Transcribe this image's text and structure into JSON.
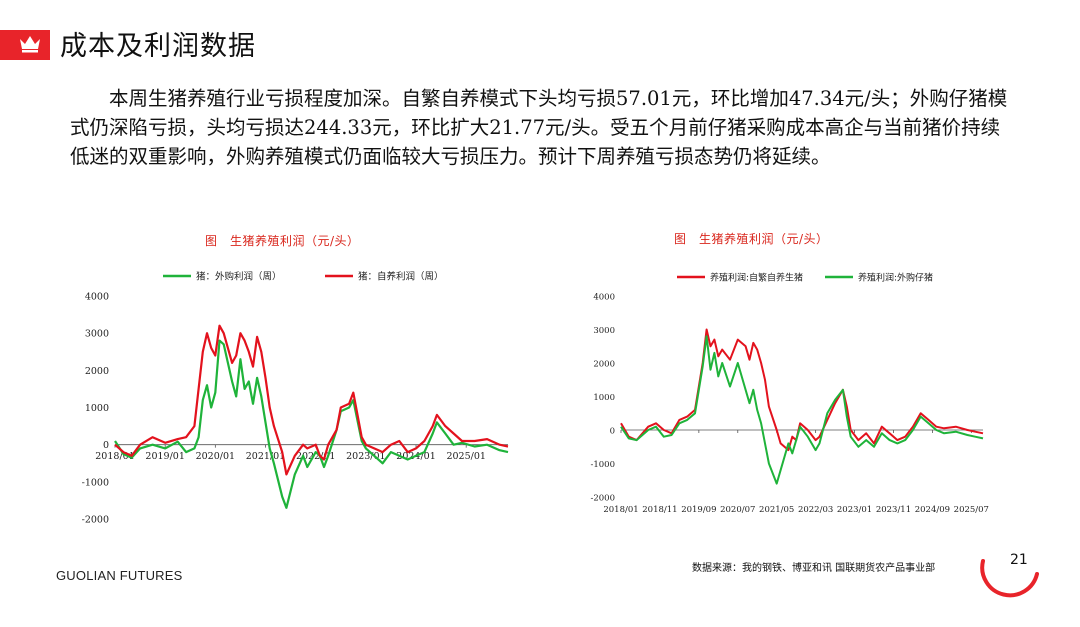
{
  "header": {
    "title": "成本及利润数据",
    "accent_color": "#e8242a",
    "logo_icon": "crown-icon"
  },
  "body": {
    "paragraph": "本周生猪养殖行业亏损程度加深。自繁自养模式下头均亏损57.01元，环比增加47.34元/头；外购仔猪模式仍深陷亏损，头均亏损达244.33元，环比扩大21.77元/头。受五个月前仔猪采购成本高企与当前猪价持续低迷的双重影响，外购养殖模式仍面临较大亏损压力。预计下周养殖亏损态势仍将延续。"
  },
  "footer": {
    "source": "数据来源：我的钢铁、博亚和讯 国联期货农产品事业部",
    "brand": "GUOLIAN FUTURES",
    "page_number": "21"
  },
  "chart_data": [
    {
      "type": "line",
      "title": "图　生猪养殖利润（元/头）",
      "ylim": [
        -2000,
        4000
      ],
      "yticks": [
        "4000",
        "3000",
        "2000",
        "1000",
        "0",
        "-1000",
        "-2000"
      ],
      "xticks": [
        "2018/01",
        "2019/01",
        "2020/01",
        "2021/01",
        "2022/01",
        "2023/01",
        "2024/01",
        "2025/01"
      ],
      "xrange": [
        "2018/01",
        "2025/11"
      ],
      "legend_position": "top",
      "series": [
        {
          "name": "猪：外购利润（周）",
          "color": "#1fb33a",
          "points": [
            [
              "2018/01",
              100
            ],
            [
              "2018/03",
              -250
            ],
            [
              "2018/05",
              -350
            ],
            [
              "2018/07",
              -100
            ],
            [
              "2018/10",
              0
            ],
            [
              "2019/01",
              -100
            ],
            [
              "2019/04",
              80
            ],
            [
              "2019/06",
              -200
            ],
            [
              "2019/08",
              -100
            ],
            [
              "2019/09",
              200
            ],
            [
              "2019/10",
              1200
            ],
            [
              "2019/11",
              1600
            ],
            [
              "2019/12",
              1000
            ],
            [
              "2020/01",
              1400
            ],
            [
              "2020/02",
              2800
            ],
            [
              "2020/03",
              2700
            ],
            [
              "2020/05",
              1700
            ],
            [
              "2020/06",
              1300
            ],
            [
              "2020/07",
              2300
            ],
            [
              "2020/08",
              1500
            ],
            [
              "2020/09",
              1700
            ],
            [
              "2020/10",
              1100
            ],
            [
              "2020/11",
              1800
            ],
            [
              "2020/12",
              1300
            ],
            [
              "2021/01",
              600
            ],
            [
              "2021/02",
              -100
            ],
            [
              "2021/03",
              -500
            ],
            [
              "2021/05",
              -1400
            ],
            [
              "2021/06",
              -1700
            ],
            [
              "2021/08",
              -800
            ],
            [
              "2021/10",
              -300
            ],
            [
              "2021/11",
              -600
            ],
            [
              "2022/01",
              -200
            ],
            [
              "2022/02",
              -300
            ],
            [
              "2022/03",
              -600
            ],
            [
              "2022/04",
              -300
            ],
            [
              "2022/06",
              400
            ],
            [
              "2022/07",
              900
            ],
            [
              "2022/09",
              1000
            ],
            [
              "2022/10",
              1200
            ],
            [
              "2022/12",
              100
            ],
            [
              "2023/01",
              -100
            ],
            [
              "2023/03",
              -300
            ],
            [
              "2023/05",
              -500
            ],
            [
              "2023/07",
              -200
            ],
            [
              "2023/09",
              -300
            ],
            [
              "2023/11",
              -400
            ],
            [
              "2024/01",
              -300
            ],
            [
              "2024/03",
              -200
            ],
            [
              "2024/05",
              300
            ],
            [
              "2024/06",
              600
            ],
            [
              "2024/08",
              300
            ],
            [
              "2024/10",
              0
            ],
            [
              "2024/12",
              50
            ],
            [
              "2025/03",
              -50
            ],
            [
              "2025/06",
              0
            ],
            [
              "2025/09",
              -150
            ],
            [
              "2025/11",
              -200
            ]
          ]
        },
        {
          "name": "猪：自养利润（周）",
          "color": "#e3121d",
          "points": [
            [
              "2018/01",
              0
            ],
            [
              "2018/03",
              -200
            ],
            [
              "2018/05",
              -300
            ],
            [
              "2018/07",
              0
            ],
            [
              "2018/10",
              200
            ],
            [
              "2019/01",
              50
            ],
            [
              "2019/04",
              150
            ],
            [
              "2019/06",
              200
            ],
            [
              "2019/08",
              500
            ],
            [
              "2019/09",
              1500
            ],
            [
              "2019/10",
              2500
            ],
            [
              "2019/11",
              3000
            ],
            [
              "2019/12",
              2600
            ],
            [
              "2020/01",
              2400
            ],
            [
              "2020/02",
              3200
            ],
            [
              "2020/03",
              3000
            ],
            [
              "2020/05",
              2200
            ],
            [
              "2020/06",
              2400
            ],
            [
              "2020/07",
              3000
            ],
            [
              "2020/08",
              2800
            ],
            [
              "2020/09",
              2500
            ],
            [
              "2020/10",
              2100
            ],
            [
              "2020/11",
              2900
            ],
            [
              "2020/12",
              2500
            ],
            [
              "2021/01",
              1800
            ],
            [
              "2021/02",
              1000
            ],
            [
              "2021/03",
              500
            ],
            [
              "2021/05",
              -200
            ],
            [
              "2021/06",
              -800
            ],
            [
              "2021/08",
              -300
            ],
            [
              "2021/10",
              0
            ],
            [
              "2021/11",
              -100
            ],
            [
              "2022/01",
              0
            ],
            [
              "2022/02",
              -300
            ],
            [
              "2022/03",
              -400
            ],
            [
              "2022/04",
              0
            ],
            [
              "2022/06",
              400
            ],
            [
              "2022/07",
              1000
            ],
            [
              "2022/09",
              1100
            ],
            [
              "2022/10",
              1400
            ],
            [
              "2022/12",
              200
            ],
            [
              "2023/01",
              0
            ],
            [
              "2023/03",
              -100
            ],
            [
              "2023/05",
              -200
            ],
            [
              "2023/07",
              0
            ],
            [
              "2023/09",
              100
            ],
            [
              "2023/11",
              -200
            ],
            [
              "2024/01",
              -100
            ],
            [
              "2024/03",
              100
            ],
            [
              "2024/05",
              500
            ],
            [
              "2024/06",
              800
            ],
            [
              "2024/08",
              500
            ],
            [
              "2024/10",
              300
            ],
            [
              "2024/12",
              100
            ],
            [
              "2025/03",
              100
            ],
            [
              "2025/06",
              150
            ],
            [
              "2025/09",
              0
            ],
            [
              "2025/11",
              -50
            ]
          ]
        }
      ]
    },
    {
      "type": "line",
      "title": "图　生猪养殖利润（元/头）",
      "ylim": [
        -2000,
        4000
      ],
      "yticks": [
        "4000",
        "3000",
        "2000",
        "1000",
        "0",
        "-1000",
        "-2000"
      ],
      "xticks": [
        "2018/01",
        "2018/11",
        "2019/09",
        "2020/07",
        "2021/05",
        "2022/03",
        "2023/01",
        "2023/11",
        "2024/09",
        "2025/07"
      ],
      "xrange": [
        "2018/01",
        "2025/10"
      ],
      "legend_position": "top",
      "series": [
        {
          "name": "养殖利润:自繁自养生猪",
          "color": "#e3121d",
          "points": [
            [
              "2018/01",
              200
            ],
            [
              "2018/03",
              -200
            ],
            [
              "2018/05",
              -300
            ],
            [
              "2018/08",
              100
            ],
            [
              "2018/10",
              200
            ],
            [
              "2018/12",
              0
            ],
            [
              "2019/02",
              -100
            ],
            [
              "2019/04",
              300
            ],
            [
              "2019/06",
              400
            ],
            [
              "2019/08",
              600
            ],
            [
              "2019/10",
              2000
            ],
            [
              "2019/11",
              3000
            ],
            [
              "2019/12",
              2500
            ],
            [
              "2020/01",
              2700
            ],
            [
              "2020/02",
              2200
            ],
            [
              "2020/03",
              2400
            ],
            [
              "2020/05",
              2100
            ],
            [
              "2020/07",
              2700
            ],
            [
              "2020/09",
              2500
            ],
            [
              "2020/10",
              2100
            ],
            [
              "2020/11",
              2600
            ],
            [
              "2020/12",
              2400
            ],
            [
              "2021/01",
              2000
            ],
            [
              "2021/02",
              1500
            ],
            [
              "2021/03",
              700
            ],
            [
              "2021/05",
              0
            ],
            [
              "2021/06",
              -400
            ],
            [
              "2021/08",
              -600
            ],
            [
              "2021/09",
              -200
            ],
            [
              "2021/10",
              -300
            ],
            [
              "2021/11",
              200
            ],
            [
              "2022/01",
              0
            ],
            [
              "2022/03",
              -300
            ],
            [
              "2022/04",
              -200
            ],
            [
              "2022/06",
              300
            ],
            [
              "2022/08",
              800
            ],
            [
              "2022/10",
              1200
            ],
            [
              "2022/11",
              700
            ],
            [
              "2022/12",
              0
            ],
            [
              "2023/02",
              -300
            ],
            [
              "2023/04",
              -100
            ],
            [
              "2023/06",
              -400
            ],
            [
              "2023/08",
              100
            ],
            [
              "2023/10",
              -100
            ],
            [
              "2023/12",
              -300
            ],
            [
              "2024/02",
              -200
            ],
            [
              "2024/04",
              100
            ],
            [
              "2024/06",
              500
            ],
            [
              "2024/08",
              300
            ],
            [
              "2024/10",
              100
            ],
            [
              "2024/12",
              50
            ],
            [
              "2025/03",
              100
            ],
            [
              "2025/06",
              0
            ],
            [
              "2025/08",
              -50
            ],
            [
              "2025/10",
              -100
            ]
          ]
        },
        {
          "name": "养殖利润:外购仔猪",
          "color": "#1fb33a",
          "points": [
            [
              "2018/01",
              100
            ],
            [
              "2018/03",
              -250
            ],
            [
              "2018/05",
              -300
            ],
            [
              "2018/08",
              0
            ],
            [
              "2018/10",
              100
            ],
            [
              "2018/12",
              -200
            ],
            [
              "2019/02",
              -150
            ],
            [
              "2019/04",
              200
            ],
            [
              "2019/06",
              300
            ],
            [
              "2019/08",
              500
            ],
            [
              "2019/10",
              1900
            ],
            [
              "2019/11",
              2800
            ],
            [
              "2019/12",
              1800
            ],
            [
              "2020/01",
              2300
            ],
            [
              "2020/02",
              1600
            ],
            [
              "2020/03",
              2000
            ],
            [
              "2020/05",
              1300
            ],
            [
              "2020/07",
              2000
            ],
            [
              "2020/09",
              1200
            ],
            [
              "2020/10",
              800
            ],
            [
              "2020/11",
              1200
            ],
            [
              "2020/12",
              600
            ],
            [
              "2021/01",
              200
            ],
            [
              "2021/02",
              -400
            ],
            [
              "2021/03",
              -1000
            ],
            [
              "2021/05",
              -1600
            ],
            [
              "2021/06",
              -1200
            ],
            [
              "2021/08",
              -400
            ],
            [
              "2021/09",
              -700
            ],
            [
              "2021/10",
              -300
            ],
            [
              "2021/11",
              100
            ],
            [
              "2022/01",
              -200
            ],
            [
              "2022/03",
              -600
            ],
            [
              "2022/04",
              -400
            ],
            [
              "2022/06",
              500
            ],
            [
              "2022/08",
              900
            ],
            [
              "2022/10",
              1200
            ],
            [
              "2022/11",
              400
            ],
            [
              "2022/12",
              -200
            ],
            [
              "2023/02",
              -500
            ],
            [
              "2023/04",
              -300
            ],
            [
              "2023/06",
              -500
            ],
            [
              "2023/08",
              -100
            ],
            [
              "2023/10",
              -300
            ],
            [
              "2023/12",
              -400
            ],
            [
              "2024/02",
              -300
            ],
            [
              "2024/04",
              0
            ],
            [
              "2024/06",
              400
            ],
            [
              "2024/08",
              200
            ],
            [
              "2024/10",
              0
            ],
            [
              "2024/12",
              -100
            ],
            [
              "2025/03",
              -50
            ],
            [
              "2025/06",
              -150
            ],
            [
              "2025/08",
              -200
            ],
            [
              "2025/10",
              -250
            ]
          ]
        }
      ]
    }
  ]
}
